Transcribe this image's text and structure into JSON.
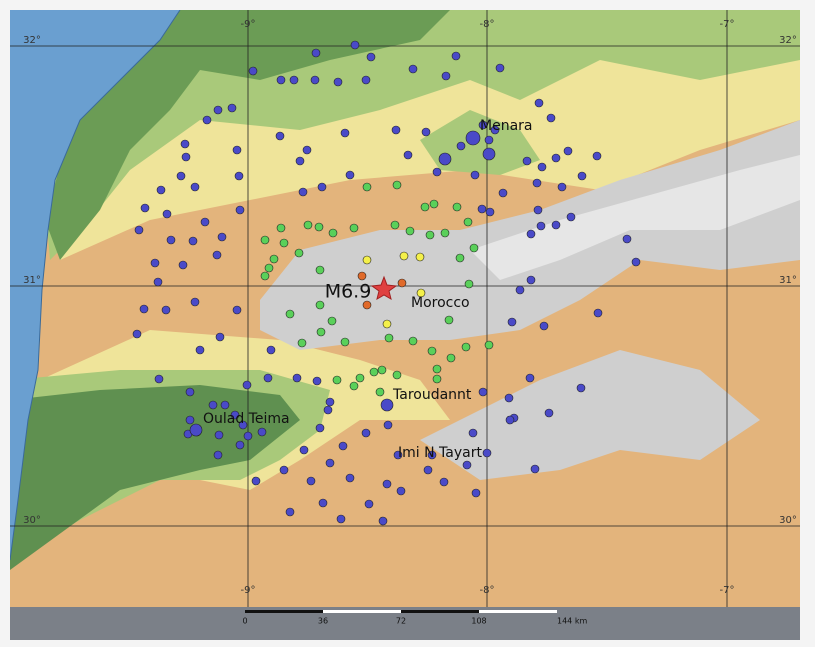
{
  "map": {
    "grid_labels": {
      "top": [
        "-9°",
        "-8°",
        "-7°"
      ],
      "bottom": [
        "-9°",
        "-8°",
        "-7°"
      ],
      "left": [
        "32°",
        "31°",
        "30°"
      ],
      "right": [
        "32°",
        "31°",
        "30°"
      ]
    },
    "epicenter_label": "M6.9",
    "places": [
      "Menara",
      "Morocco",
      "Taroudannt",
      "Oulad Teima",
      "Imi N Tayart"
    ],
    "scale_bar": [
      "0",
      "36",
      "72",
      "108",
      "144 km"
    ]
  }
}
